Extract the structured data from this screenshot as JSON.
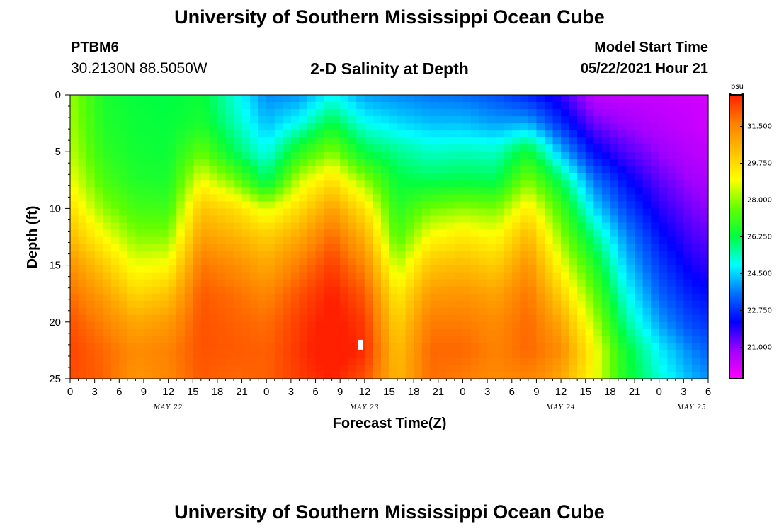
{
  "header": {
    "title": "University of Southern Mississippi Ocean Cube",
    "station_id": "PTBM6",
    "station_coords": "30.2130N  88.5050W",
    "plot_title": "2-D Salinity at Depth",
    "model_start_label": "Model Start Time",
    "model_start_value": "05/22/2021 Hour 21"
  },
  "footer": {
    "title": "University of Southern Mississippi Ocean Cube"
  },
  "chart_data": {
    "type": "heatmap",
    "title": "2-D Salinity at Depth",
    "xlabel": "Forecast Time(Z)",
    "ylabel": "Depth (ft)",
    "x_tick_labels": [
      "0",
      "3",
      "6",
      "9",
      "12",
      "15",
      "18",
      "21",
      "0",
      "3",
      "6",
      "9",
      "12",
      "15",
      "18",
      "21",
      "0",
      "3",
      "6",
      "9",
      "12",
      "15",
      "18",
      "21",
      "0",
      "3",
      "6"
    ],
    "x_range_hours": [
      0,
      78
    ],
    "date_labels": [
      {
        "label": "MAY 22",
        "hour": 12
      },
      {
        "label": "MAY 23",
        "hour": 36
      },
      {
        "label": "MAY 24",
        "hour": 60
      },
      {
        "label": "MAY 25",
        "hour": 76
      }
    ],
    "y_ticks": [
      0,
      5,
      10,
      15,
      20,
      25
    ],
    "y_range": [
      0,
      25
    ],
    "y_inverted": true,
    "colorbar": {
      "unit": "psu",
      "tick_labels": [
        "31.500",
        "29.750",
        "28.000",
        "26.250",
        "24.500",
        "22.750",
        "21.000"
      ],
      "min": 19.5,
      "max": 33.0,
      "colors": [
        "#ff00ff",
        "#a000ff",
        "#0000ff",
        "#0070ff",
        "#00ffff",
        "#00ff40",
        "#60ff00",
        "#ffff00",
        "#ffc000",
        "#ff8000",
        "#ff2000"
      ]
    },
    "salinity_profiles": {
      "hours": [
        0,
        4,
        8,
        12,
        16,
        20,
        24,
        28,
        32,
        36,
        40,
        44,
        48,
        52,
        56,
        60,
        64,
        68,
        72,
        76,
        78
      ],
      "depths_ft": [
        0,
        2.5,
        5,
        7.5,
        10,
        12.5,
        15,
        17.5,
        20,
        22.5,
        25
      ],
      "values": [
        [
          28.1,
          28.2,
          28.4,
          28.9,
          29.6,
          30.4,
          31.3,
          31.9,
          32.3,
          32.5,
          32.4
        ],
        [
          26.6,
          26.7,
          26.9,
          27.3,
          28.0,
          29.0,
          30.1,
          31.0,
          31.6,
          32.0,
          32.1
        ],
        [
          26.3,
          26.4,
          26.5,
          26.7,
          27.2,
          27.9,
          28.8,
          29.8,
          30.8,
          31.4,
          31.2
        ],
        [
          26.2,
          26.3,
          26.4,
          26.6,
          27.1,
          27.9,
          29.0,
          30.2,
          31.1,
          31.6,
          31.5
        ],
        [
          26.4,
          26.6,
          27.6,
          28.9,
          30.2,
          31.0,
          31.8,
          32.2,
          32.3,
          32.3,
          32.2
        ],
        [
          25.2,
          25.5,
          26.1,
          27.8,
          29.7,
          30.6,
          31.4,
          31.9,
          32.1,
          32.2,
          32.0
        ],
        [
          23.8,
          24.3,
          25.0,
          26.0,
          28.6,
          30.0,
          30.8,
          31.5,
          31.9,
          32.1,
          32.1
        ],
        [
          23.9,
          25.0,
          26.8,
          28.5,
          29.7,
          30.8,
          31.7,
          32.3,
          32.6,
          32.7,
          32.6
        ],
        [
          24.9,
          26.3,
          27.9,
          29.6,
          31.0,
          32.0,
          32.6,
          33.0,
          33.2,
          33.4,
          33.0
        ],
        [
          24.0,
          25.0,
          26.2,
          28.0,
          29.5,
          30.6,
          31.5,
          32.2,
          32.6,
          32.8,
          32.3
        ],
        [
          23.8,
          24.6,
          25.7,
          26.3,
          26.8,
          27.3,
          28.3,
          29.3,
          29.9,
          30.3,
          30.5
        ],
        [
          23.6,
          24.3,
          25.3,
          26.1,
          27.7,
          29.0,
          30.2,
          31.1,
          31.7,
          32.0,
          31.9
        ],
        [
          23.5,
          24.3,
          25.4,
          26.2,
          28.0,
          29.4,
          30.4,
          31.2,
          31.7,
          32.0,
          31.7
        ],
        [
          23.2,
          24.0,
          25.3,
          26.1,
          27.8,
          29.0,
          30.0,
          30.9,
          31.4,
          31.6,
          31.4
        ],
        [
          22.6,
          24.1,
          26.5,
          27.9,
          29.3,
          30.5,
          31.3,
          31.8,
          32.0,
          32.0,
          31.6
        ],
        [
          21.8,
          22.7,
          24.2,
          26.0,
          27.2,
          28.0,
          28.9,
          29.9,
          30.8,
          31.4,
          30.8
        ],
        [
          20.4,
          21.3,
          22.3,
          23.6,
          24.6,
          25.8,
          26.8,
          27.6,
          28.4,
          29.1,
          29.0
        ],
        [
          20.3,
          20.8,
          21.5,
          22.3,
          23.0,
          23.8,
          24.4,
          25.0,
          25.6,
          26.4,
          26.6
        ],
        [
          20.3,
          20.5,
          20.9,
          21.4,
          21.9,
          22.4,
          22.9,
          23.4,
          24.0,
          24.8,
          25.2
        ],
        [
          20.2,
          20.3,
          20.5,
          20.8,
          21.2,
          21.6,
          22.0,
          22.5,
          23.0,
          23.7,
          24.2
        ],
        [
          20.1,
          20.2,
          20.4,
          20.7,
          21.0,
          21.4,
          21.8,
          22.3,
          22.8,
          23.4,
          23.9
        ]
      ]
    },
    "marker": {
      "hour": 35.5,
      "depth_ft": 22
    }
  }
}
